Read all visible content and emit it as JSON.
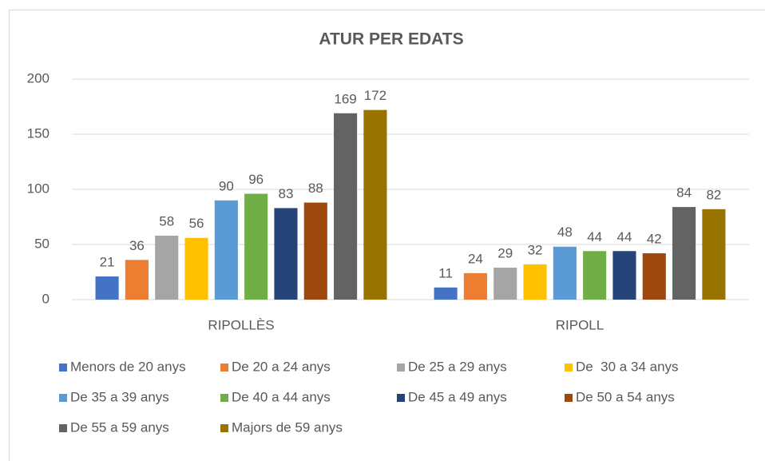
{
  "chart_data": {
    "type": "bar",
    "title": "ATUR PER EDATS",
    "categories": [
      "RIPOLLÈS",
      "RIPOLL"
    ],
    "series": [
      {
        "name": "Menors de 20 anys",
        "color": "#4472c4",
        "values": [
          21,
          11
        ]
      },
      {
        "name": "De 20 a 24 anys",
        "color": "#ed7d31",
        "values": [
          36,
          24
        ]
      },
      {
        "name": "De 25 a 29 anys",
        "color": "#a5a5a5",
        "values": [
          58,
          29
        ]
      },
      {
        "name": "De  30 a 34 anys",
        "color": "#ffc000",
        "values": [
          56,
          32
        ]
      },
      {
        "name": "De 35 a 39 anys",
        "color": "#5b9bd5",
        "values": [
          90,
          48
        ]
      },
      {
        "name": "De 40 a 44 anys",
        "color": "#70ad47",
        "values": [
          96,
          44
        ]
      },
      {
        "name": "De 45 a 49 anys",
        "color": "#264478",
        "values": [
          83,
          44
        ]
      },
      {
        "name": "De 50 a 54 anys",
        "color": "#9e480e",
        "values": [
          88,
          42
        ]
      },
      {
        "name": "De 55 a 59 anys",
        "color": "#636363",
        "values": [
          169,
          84
        ]
      },
      {
        "name": "Majors de 59 anys",
        "color": "#997300",
        "values": [
          172,
          82
        ]
      }
    ],
    "ylim": [
      0,
      200
    ],
    "yticks": [
      0,
      50,
      100,
      150,
      200
    ],
    "grid": true,
    "legend": "bottom"
  }
}
